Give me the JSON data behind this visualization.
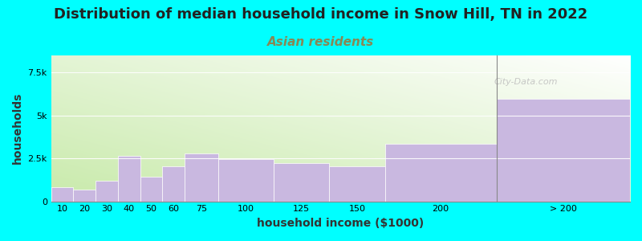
{
  "title": "Distribution of median household income in Snow Hill, TN in 2022",
  "subtitle": "Asian residents",
  "xlabel": "household income ($1000)",
  "ylabel": "households",
  "background_color": "#00FFFF",
  "plot_bg_grad_left": "#c8eaaa",
  "plot_bg_grad_right": "#f0f8e8",
  "plot_bg_grad_top": "#ffffff",
  "bar_color": "#c9b8e0",
  "categories": [
    "10",
    "20",
    "30",
    "40",
    "50",
    "60",
    "75",
    "100",
    "125",
    "150",
    "200",
    "> 200"
  ],
  "values": [
    800,
    700,
    1200,
    2650,
    1450,
    2050,
    2800,
    2450,
    2250,
    2050,
    3350,
    5950
  ],
  "bar_lefts": [
    0,
    10,
    20,
    30,
    40,
    50,
    60,
    75,
    100,
    125,
    150,
    200
  ],
  "bar_widths": [
    10,
    10,
    10,
    10,
    10,
    10,
    15,
    25,
    25,
    25,
    50,
    60
  ],
  "ylim": [
    0,
    8500
  ],
  "yticks": [
    0,
    2500,
    5000,
    7500
  ],
  "ytick_labels": [
    "0",
    "2.5k",
    "5k",
    "7.5k"
  ],
  "xlim_left": 0,
  "xlim_right": 260,
  "watermark": "City-Data.com",
  "title_fontsize": 13,
  "subtitle_fontsize": 11,
  "axis_label_fontsize": 10,
  "subtitle_color": "#888855",
  "title_color": "#222222"
}
